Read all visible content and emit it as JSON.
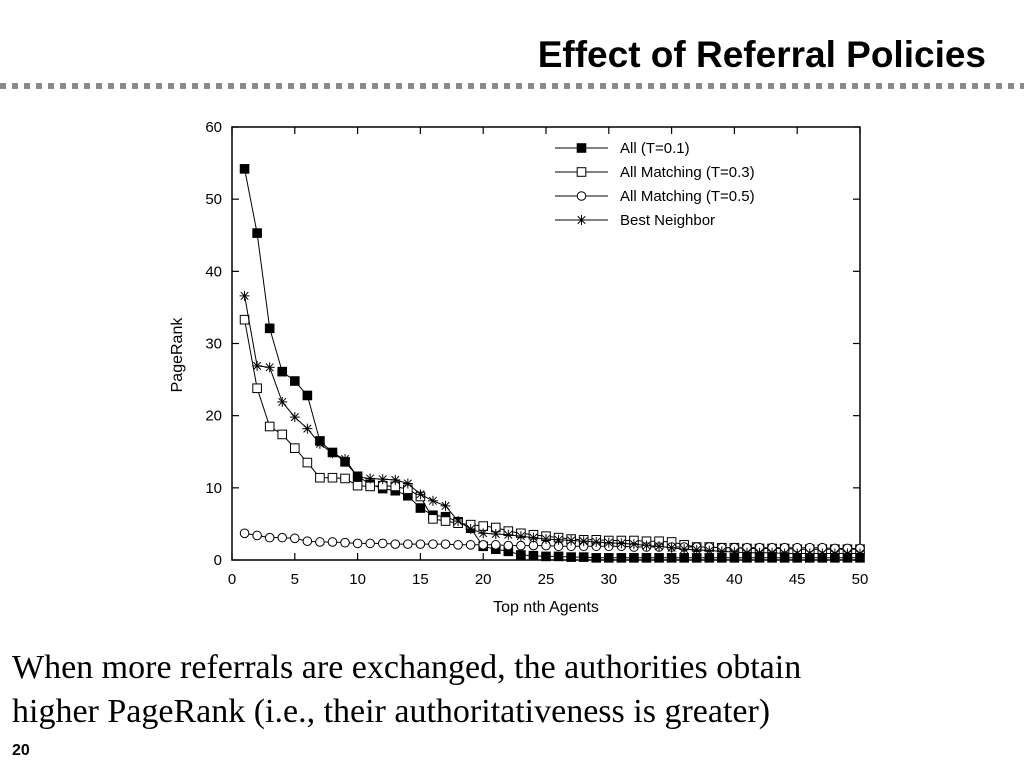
{
  "slide": {
    "title": "Effect of Referral Policies",
    "caption_line1": "When more referrals are exchanged, the authorities obtain",
    "caption_line2": "higher PageRank (i.e., their authoritativeness is greater)",
    "page_number": "20"
  },
  "chart_data": {
    "type": "line",
    "title": "",
    "xlabel": "Top nth Agents",
    "ylabel": "PageRank",
    "xlim": [
      0,
      50
    ],
    "ylim": [
      0,
      60
    ],
    "xticks": [
      0,
      5,
      10,
      15,
      20,
      25,
      30,
      35,
      40,
      45,
      50
    ],
    "yticks": [
      0,
      10,
      20,
      30,
      40,
      50,
      60
    ],
    "legend_position": "top-right",
    "grid": false,
    "x": [
      1,
      2,
      3,
      4,
      5,
      6,
      7,
      8,
      9,
      10,
      11,
      12,
      13,
      14,
      15,
      16,
      17,
      18,
      19,
      20,
      21,
      22,
      23,
      24,
      25,
      26,
      27,
      28,
      29,
      30,
      31,
      32,
      33,
      34,
      35,
      36,
      37,
      38,
      39,
      40,
      41,
      42,
      43,
      44,
      45,
      46,
      47,
      48,
      49,
      50
    ],
    "series": [
      {
        "name": "All (T=0.1)",
        "marker": "filled-square",
        "values": [
          54.2,
          45.3,
          32.1,
          26.1,
          24.8,
          22.8,
          16.5,
          14.9,
          13.6,
          11.6,
          10.5,
          9.9,
          9.6,
          8.9,
          7.2,
          6.2,
          6.0,
          5.3,
          4.4,
          1.9,
          1.5,
          1.2,
          0.7,
          0.6,
          0.5,
          0.5,
          0.4,
          0.4,
          0.3,
          0.3,
          0.3,
          0.3,
          0.3,
          0.3,
          0.3,
          0.3,
          0.3,
          0.3,
          0.3,
          0.3,
          0.3,
          0.3,
          0.3,
          0.3,
          0.3,
          0.3,
          0.3,
          0.3,
          0.3,
          0.3
        ]
      },
      {
        "name": "All Matching (T=0.3)",
        "marker": "open-square",
        "values": [
          33.3,
          23.8,
          18.5,
          17.4,
          15.5,
          13.5,
          11.4,
          11.4,
          11.3,
          10.3,
          10.2,
          10.3,
          10.2,
          9.8,
          8.8,
          5.7,
          5.4,
          5.1,
          4.9,
          4.7,
          4.5,
          4.0,
          3.7,
          3.5,
          3.3,
          3.1,
          2.9,
          2.8,
          2.8,
          2.7,
          2.7,
          2.7,
          2.6,
          2.6,
          2.5,
          2.1,
          1.8,
          1.8,
          1.7,
          1.7,
          1.6,
          1.6,
          1.6,
          1.6,
          1.5,
          1.5,
          1.5,
          1.5,
          1.5,
          1.5
        ]
      },
      {
        "name": "All Matching (T=0.5)",
        "marker": "open-circle",
        "values": [
          3.7,
          3.4,
          3.1,
          3.1,
          3.0,
          2.6,
          2.5,
          2.5,
          2.4,
          2.3,
          2.3,
          2.3,
          2.2,
          2.2,
          2.2,
          2.2,
          2.2,
          2.1,
          2.1,
          2.1,
          2.1,
          2.0,
          2.0,
          2.0,
          2.0,
          1.9,
          1.9,
          1.9,
          1.9,
          1.9,
          1.9,
          1.8,
          1.8,
          1.8,
          1.8,
          1.8,
          1.8,
          1.8,
          1.7,
          1.7,
          1.7,
          1.7,
          1.7,
          1.7,
          1.7,
          1.7,
          1.7,
          1.6,
          1.6,
          1.6
        ]
      },
      {
        "name": "Best Neighbor",
        "marker": "asterisk",
        "values": [
          36.6,
          26.9,
          26.7,
          21.9,
          19.8,
          18.2,
          16.1,
          14.8,
          14.0,
          11.5,
          11.3,
          11.2,
          11.1,
          10.6,
          9.1,
          8.2,
          7.5,
          5.4,
          4.3,
          3.7,
          3.6,
          3.5,
          3.3,
          3.1,
          2.9,
          2.8,
          2.7,
          2.6,
          2.5,
          2.4,
          2.3,
          2.2,
          2.0,
          1.9,
          1.7,
          1.5,
          1.4,
          1.3,
          1.2,
          1.1,
          1.0,
          1.0,
          1.0,
          0.9,
          0.9,
          0.9,
          0.9,
          0.9,
          0.9,
          0.9
        ]
      }
    ]
  }
}
